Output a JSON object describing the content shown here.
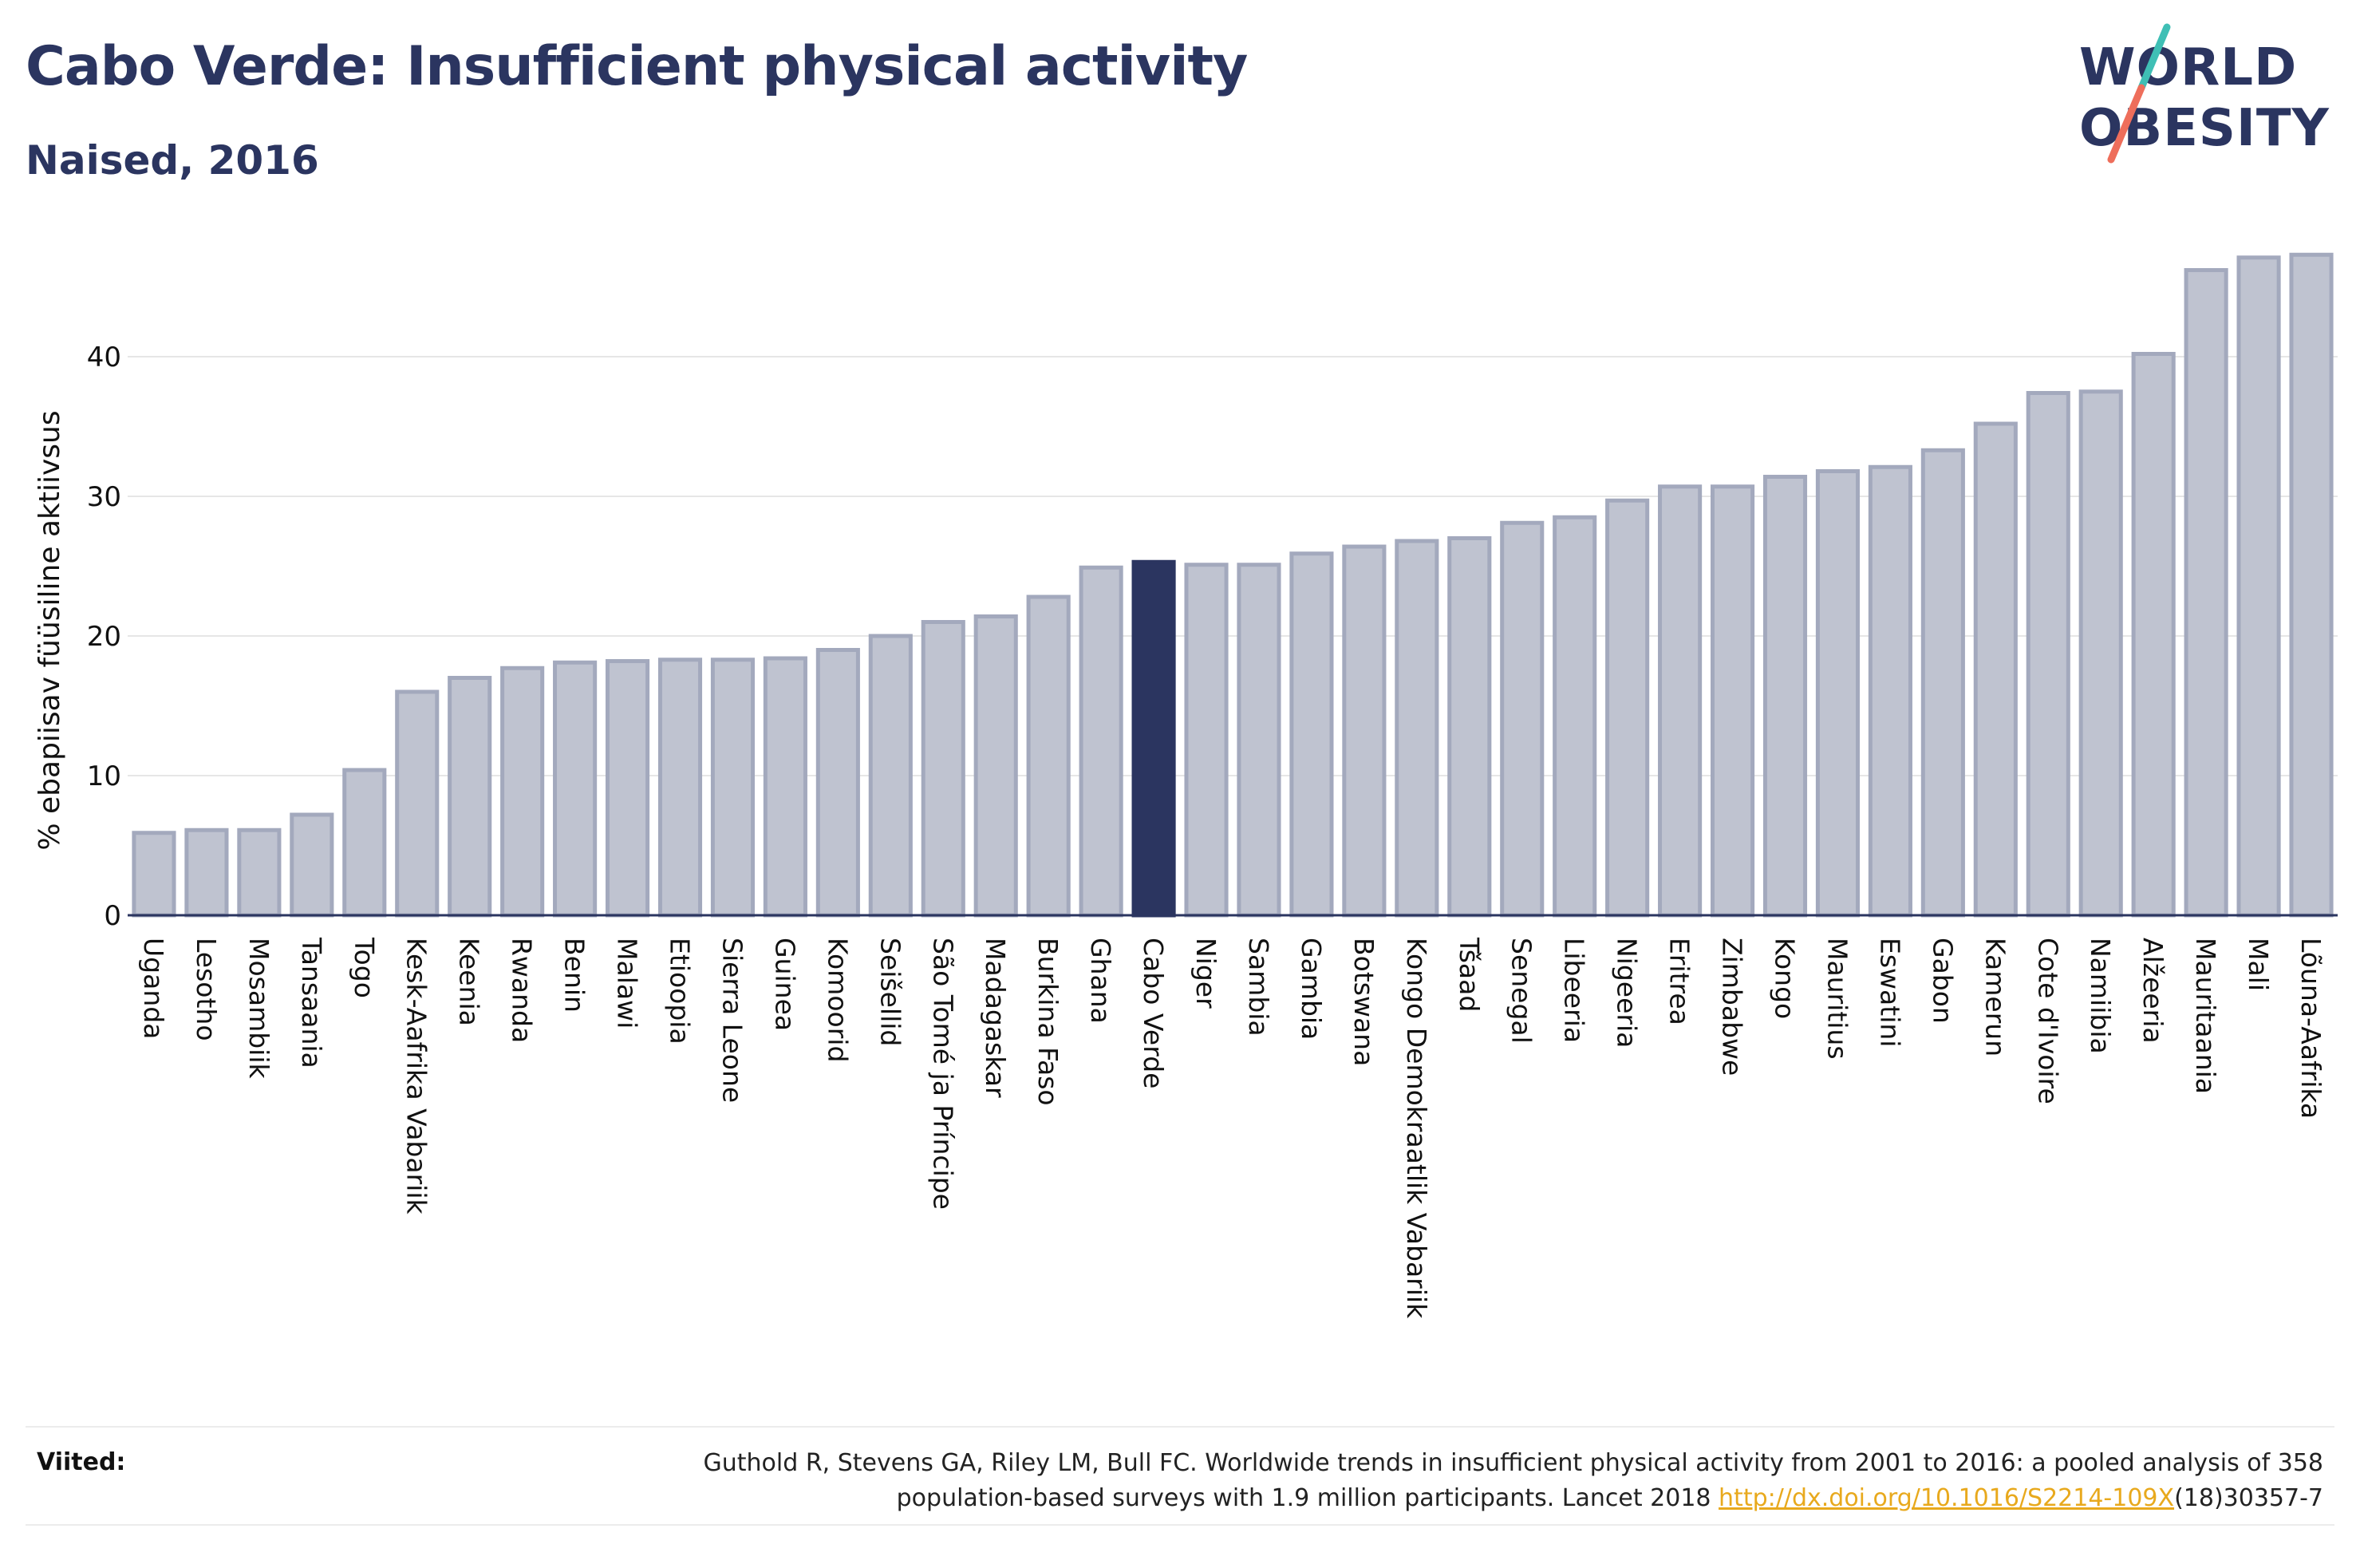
{
  "header": {
    "title": "Cabo Verde: Insufficient physical activity",
    "subtitle": "Naised, 2016"
  },
  "logo": {
    "line1": "WORLD",
    "line2": "OBESITY"
  },
  "footer": {
    "label": "Viited:",
    "text_line1": "Guthold R, Stevens GA, Riley LM, Bull FC. Worldwide trends in insufficient physical activity from 2001 to 2016: a pooled analysis of 358",
    "text_line2_pre": "population-based surveys with 1.9 million participants. Lancet 2018 ",
    "link": "http://dx.doi.org/10.1016/S2214-109X",
    "text_line2_post": "(18)30357-7"
  },
  "colors": {
    "bar": "#bfc3d0",
    "bar_border": "#a3a9bd",
    "highlight": "#2b3560",
    "text": "#2b3560",
    "grid": "#e6e6e6",
    "link": "#e8a91d"
  },
  "chart_data": {
    "type": "bar",
    "title": "Cabo Verde: Insufficient physical activity",
    "subtitle": "Naised, 2016",
    "xlabel": "",
    "ylabel": "% ebapiisav füüsiline aktiivsus",
    "ylim": [
      0,
      48
    ],
    "yticks": [
      0,
      10,
      20,
      30,
      40
    ],
    "grid": true,
    "highlight": "Cabo Verde",
    "categories": [
      "Uganda",
      "Lesotho",
      "Mosambiik",
      "Tansaania",
      "Togo",
      "Kesk-Aafrika Vabariik",
      "Keenia",
      "Rwanda",
      "Benin",
      "Malawi",
      "Etioopia",
      "Sierra Leone",
      "Guinea",
      "Komoorid",
      "Seišellid",
      "São Tomé ja Príncipe",
      "Madagaskar",
      "Burkina Faso",
      "Ghana",
      "Cabo Verde",
      "Niger",
      "Sambia",
      "Gambia",
      "Botswana",
      "Kongo Demokraatlik Vabariik",
      "Tšaad",
      "Senegal",
      "Libeeria",
      "Nigeeria",
      "Eritrea",
      "Zimbabwe",
      "Kongo",
      "Mauritius",
      "Eswatini",
      "Gabon",
      "Kamerun",
      "Cote d'Ivoire",
      "Namiibia",
      "Alžeeria",
      "Mauritaania",
      "Mali",
      "Lõuna-Aafrika"
    ],
    "values": [
      5.9,
      6.1,
      6.1,
      7.2,
      10.4,
      16.0,
      17.0,
      17.7,
      18.1,
      18.2,
      18.3,
      18.3,
      18.4,
      19.0,
      20.0,
      21.0,
      21.4,
      22.8,
      24.9,
      25.3,
      25.1,
      25.1,
      25.9,
      26.4,
      26.8,
      27.0,
      28.1,
      28.5,
      29.7,
      30.7,
      30.7,
      31.4,
      31.8,
      32.1,
      33.3,
      35.2,
      37.4,
      37.5,
      40.2,
      46.2,
      47.1,
      47.3
    ]
  }
}
